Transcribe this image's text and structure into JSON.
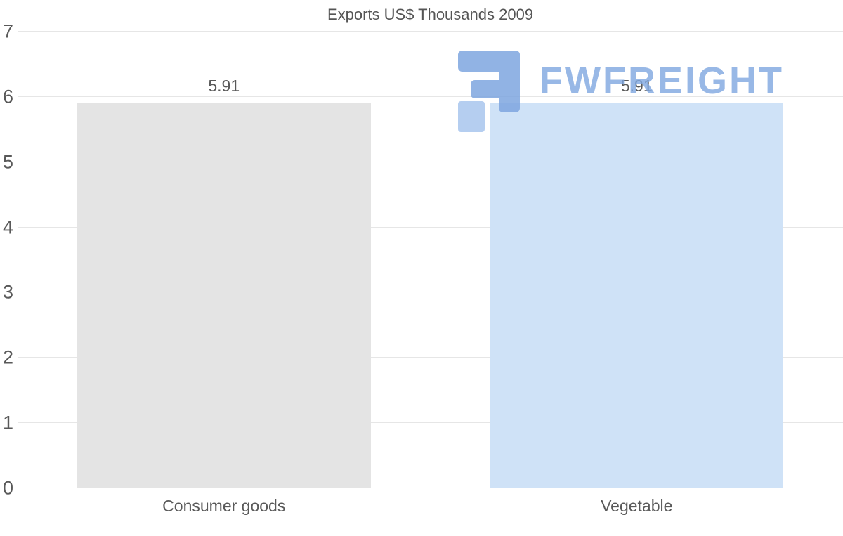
{
  "chart_data": {
    "type": "bar",
    "title": "Exports US$ Thousands 2009",
    "categories": [
      "Consumer goods",
      "Vegetable"
    ],
    "values": [
      5.91,
      5.91
    ],
    "value_labels": [
      "5.91",
      "5.91"
    ],
    "series_name": "Exports US$ Thousands",
    "bar_colors": [
      "#e4e4e4",
      "#cfe2f7"
    ],
    "ylim": [
      0,
      7
    ],
    "yticks": [
      0,
      1,
      2,
      3,
      4,
      5,
      6,
      7
    ],
    "grid": true,
    "legend": "none",
    "xlabel": "",
    "ylabel": ""
  },
  "watermark": {
    "text": "FWFREIGHT",
    "icon_color": "#7ea6e0",
    "icon_light_color": "#a9c6ee"
  },
  "colors": {
    "text": "#595959",
    "gridline": "#e6e6e6",
    "background": "#ffffff"
  }
}
